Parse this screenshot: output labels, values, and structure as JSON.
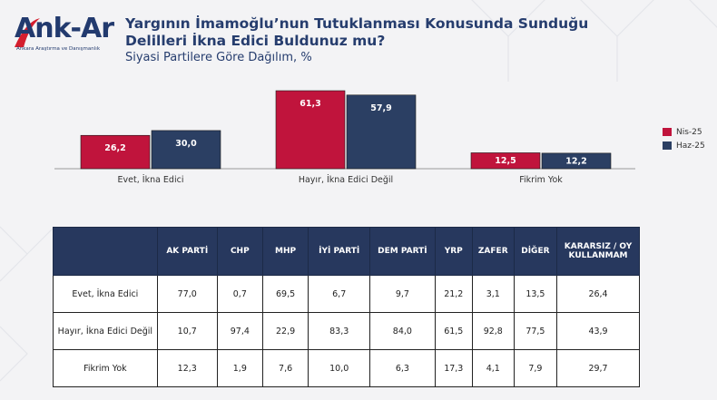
{
  "brand": {
    "name": "Ank-Ar",
    "tagline": "Ankara Araştırma ve Danışmanlık"
  },
  "header": {
    "title_line1": "Yargının İmamoğlu’nun Tutuklanması Konusunda Sunduğu",
    "title_line2": "Delilleri İkna Edici Buldunuz mu?",
    "subtitle": "Siyasi Partilere Göre Dağılım, %"
  },
  "colors": {
    "nis": "#c0143c",
    "haz": "#2b3f63",
    "table_header": "#27385e"
  },
  "chart_data": {
    "type": "bar",
    "title": "Yargının İmamoğlu’nun Tutuklanması Konusunda Sunduğu Delilleri İkna Edici Buldunuz mu?",
    "subtitle": "Siyasi Partilere Göre Dağılım, %",
    "categories": [
      "Evet, İkna Edici",
      "Hayır, İkna Edici Değil",
      "Fikrim Yok"
    ],
    "series": [
      {
        "name": "Nis-25",
        "values": [
          26.2,
          61.3,
          12.5
        ],
        "labels": [
          "26,2",
          "61,3",
          "12,5"
        ],
        "color": "#c0143c"
      },
      {
        "name": "Haz-25",
        "values": [
          30.0,
          57.9,
          12.2
        ],
        "labels": [
          "30,0",
          "57,9",
          "12,2"
        ],
        "color": "#2b3f63"
      }
    ],
    "ylim": [
      0,
      61.3
    ],
    "grid": false,
    "legend_position": "right"
  },
  "legend": [
    {
      "label": "Nis-25",
      "color": "#c0143c"
    },
    {
      "label": "Haz-25",
      "color": "#2b3f63"
    }
  ],
  "table": {
    "columns": [
      "AK PARTİ",
      "CHP",
      "MHP",
      "İYİ PARTİ",
      "DEM PARTİ",
      "YRP",
      "ZAFER",
      "DİĞER",
      "KARARSIZ / OY KULLANMAM"
    ],
    "rows": [
      {
        "label": "Evet, İkna Edici",
        "values": [
          "77,0",
          "0,7",
          "69,5",
          "6,7",
          "9,7",
          "21,2",
          "3,1",
          "13,5",
          "26,4"
        ]
      },
      {
        "label": "Hayır, İkna Edici Değil",
        "values": [
          "10,7",
          "97,4",
          "22,9",
          "83,3",
          "84,0",
          "61,5",
          "92,8",
          "77,5",
          "43,9"
        ]
      },
      {
        "label": "Fikrim Yok",
        "values": [
          "12,3",
          "1,9",
          "7,6",
          "10,0",
          "6,3",
          "17,3",
          "4,1",
          "7,9",
          "29,7"
        ]
      }
    ]
  }
}
